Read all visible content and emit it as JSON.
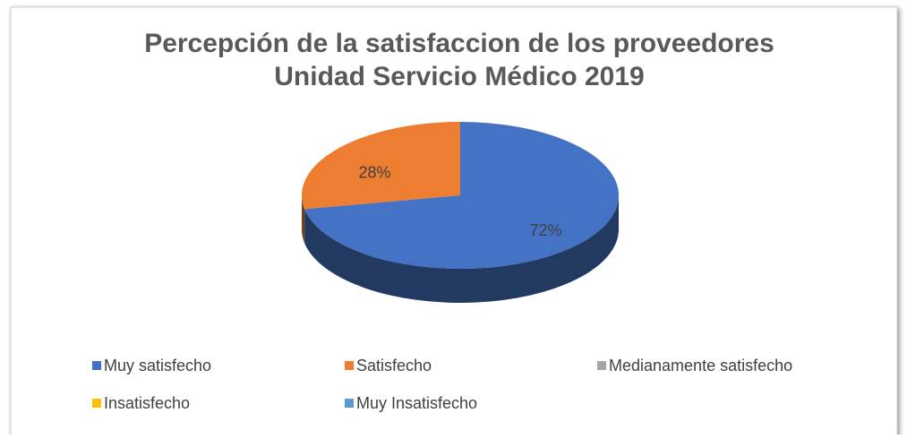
{
  "chart_data": {
    "type": "pie",
    "title": [
      "Percepción de la satisfaccion de los proveedores",
      "Unidad Servicio Médico 2019"
    ],
    "categories": [
      "Muy satisfecho",
      "Satisfecho",
      "Medianamente satisfecho",
      "Insatisfecho",
      "Muy Insatisfecho"
    ],
    "values": [
      72,
      28,
      0,
      0,
      0
    ],
    "value_labels": [
      "72%",
      "28%",
      null,
      null,
      null
    ],
    "colors": [
      "#4472c4",
      "#ed7d31",
      "#a5a5a5",
      "#ffc000",
      "#5b9bd5"
    ],
    "legend": "bottom"
  }
}
